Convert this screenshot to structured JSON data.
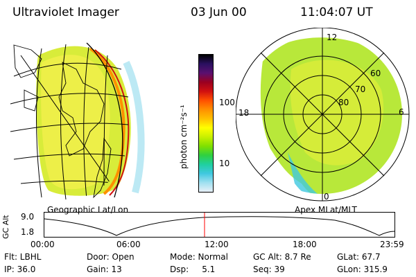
{
  "header": {
    "title": "Ultraviolet Imager",
    "date": "03 Jun 00",
    "time": "11:04:07 UT"
  },
  "colorbar": {
    "unit": "photon cm⁻²s⁻¹",
    "ticks": [
      "100",
      "10"
    ],
    "colors": [
      "#000000",
      "#2a1060",
      "#5a1070",
      "#9a0020",
      "#d01010",
      "#ff5000",
      "#ff9000",
      "#ffc000",
      "#ffff00",
      "#c8f000",
      "#80e000",
      "#30d040",
      "#20d0a0",
      "#40c8e0",
      "#a0e0f0",
      "#e8f0f8"
    ]
  },
  "maps": {
    "left_caption": "Geographic Lat/Lon",
    "right_caption": "Apex MLat/MLT",
    "polar_labels": {
      "top": "12",
      "right": "6",
      "left": "18",
      "bottom": "0",
      "r60": "60",
      "r70": "70",
      "r80": "80"
    }
  },
  "altitude_plot": {
    "ylabel": "GC Alt",
    "yticks": [
      "9.0",
      "1.8"
    ],
    "xticks": [
      "00:00",
      "06:00",
      "12:00",
      "18:00",
      "23:59"
    ],
    "current_time_color": "#ff0000"
  },
  "info": [
    {
      "text": "Flt: LBHL"
    },
    {
      "text": "Door: Open"
    },
    {
      "text": "Mode: Normal"
    },
    {
      "text": "GC Alt: 8.7 Re"
    },
    {
      "text": "GLat: 67.7"
    },
    {
      "text": "IP: 36.0"
    },
    {
      "text": "Gain: 13"
    },
    {
      "text": "Dsp:     5.1"
    },
    {
      "text": "Seq: 39"
    },
    {
      "text": "GLon: 315.9"
    }
  ]
}
